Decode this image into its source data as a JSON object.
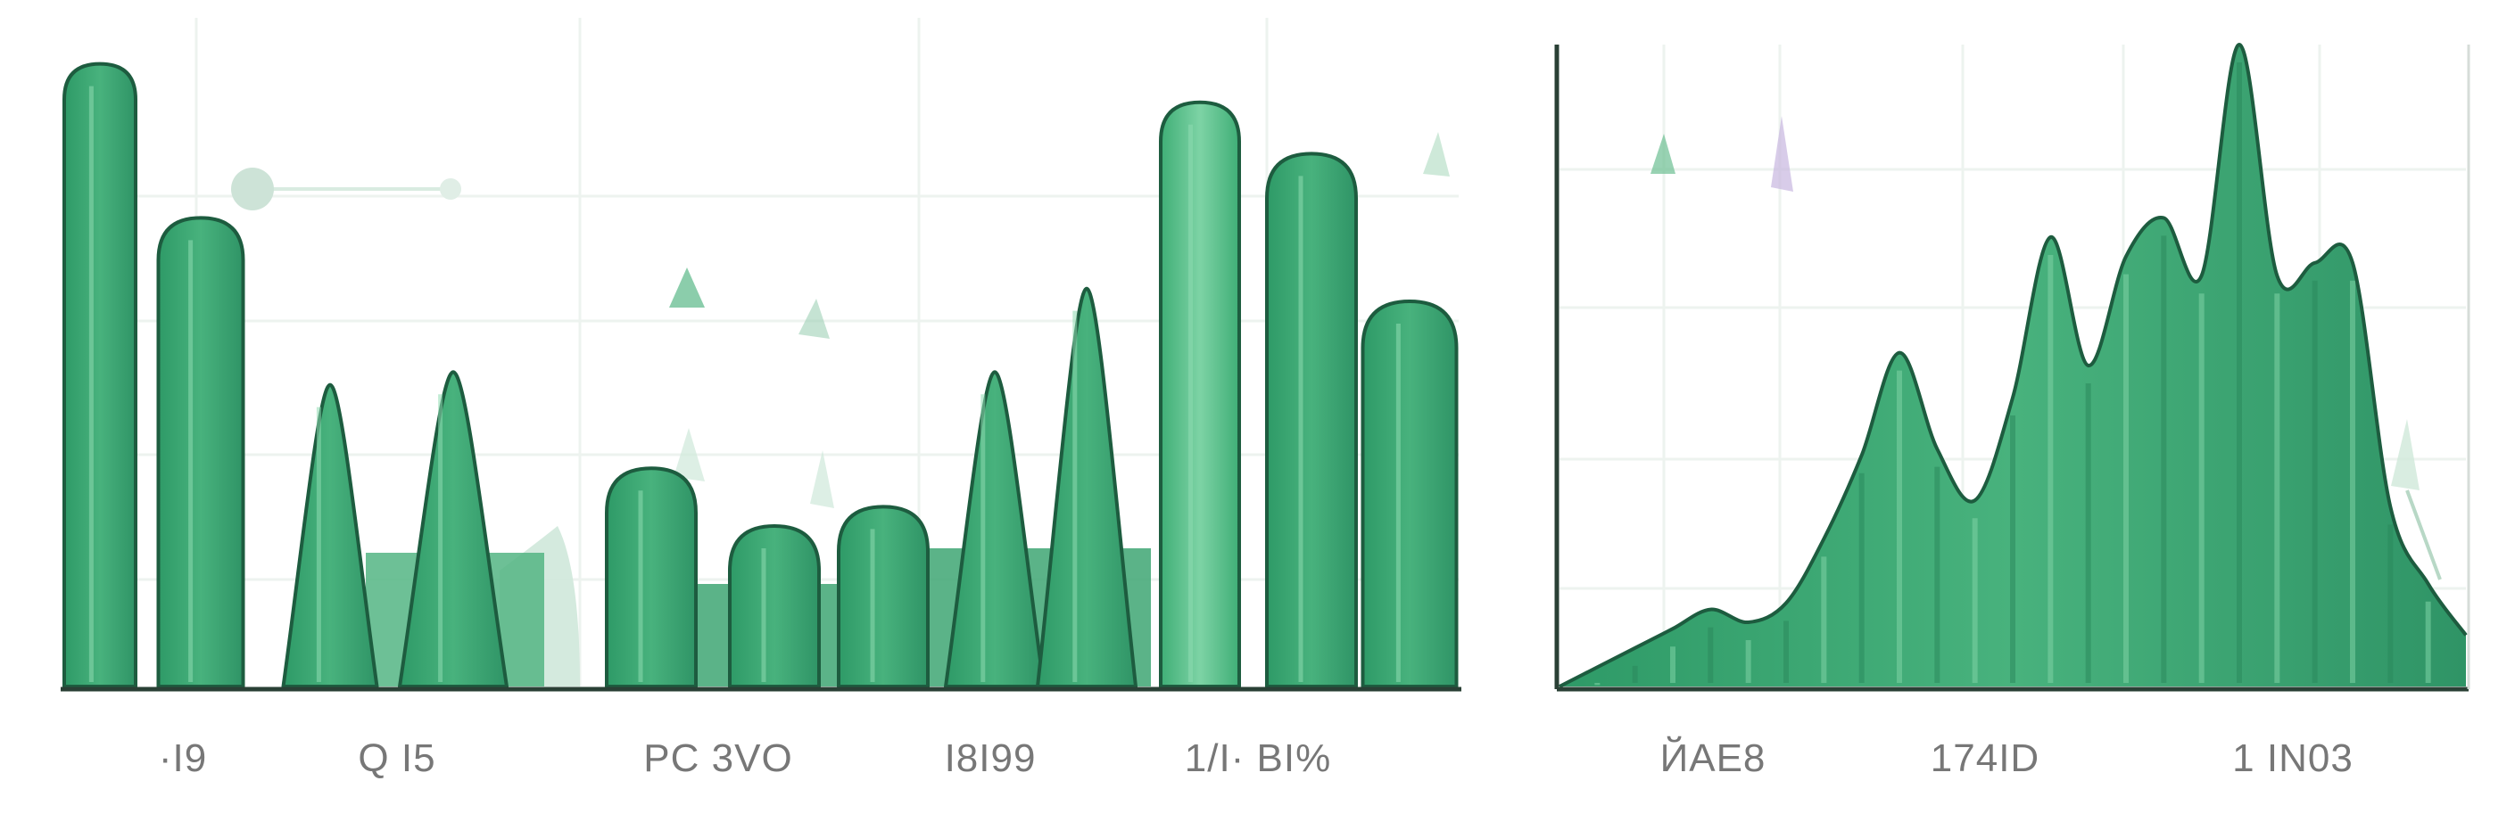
{
  "colors": {
    "fill_dark": "#2e9a67",
    "fill_mid": "#46b37c",
    "fill_light": "#7dd3a5",
    "stroke": "#1d5c3f",
    "ghost": "#cfe8da",
    "axis": "#2a4035",
    "grid": "#edf3ef"
  },
  "chart_data": [
    {
      "type": "area",
      "title": "",
      "xlabel": "",
      "ylabel": "",
      "grid": true,
      "legend": "none",
      "ylim": [
        0,
        100
      ],
      "x_tick_labels": [
        "·I9",
        "Q  I5",
        "PC  3VO",
        "I8I99",
        "1/I·  BI%"
      ],
      "series": [
        {
          "peaks": [
            97,
            73,
            47,
            49,
            34,
            25,
            28,
            49,
            62,
            91,
            83,
            60
          ]
        }
      ]
    },
    {
      "type": "area",
      "title": "",
      "xlabel": "",
      "ylabel": "",
      "grid": true,
      "legend": "none",
      "ylim": [
        0,
        100
      ],
      "x_tick_labels": [
        "ЙAE8",
        "174ID",
        "1  IN03"
      ],
      "series": [
        {
          "values": [
            0,
            3,
            6,
            9,
            12,
            10,
            13,
            23,
            36,
            52,
            37,
            29,
            45,
            70,
            50,
            67,
            73,
            64,
            100,
            64,
            66,
            66,
            28,
            16,
            8
          ]
        }
      ]
    }
  ]
}
